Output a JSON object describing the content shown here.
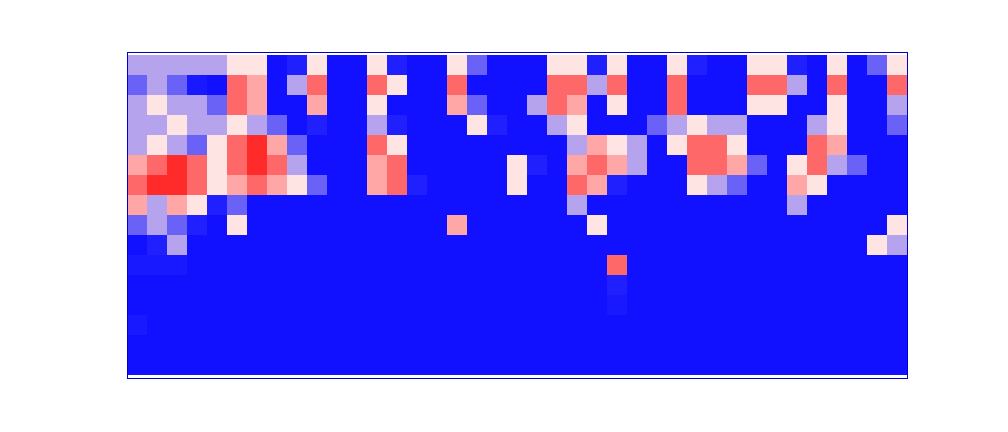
{
  "chart_data": {
    "type": "heatmap",
    "tick_labels": false,
    "zlim": [
      0,
      9
    ],
    "z": [
      [
        5,
        5,
        5,
        5,
        5,
        6,
        6,
        1,
        3,
        6,
        1,
        1,
        6,
        3,
        1,
        1,
        6,
        4,
        1,
        1,
        1,
        6,
        6,
        3,
        6,
        1,
        1,
        6,
        3,
        1,
        1,
        6,
        6,
        3,
        1,
        6,
        1,
        4,
        6
      ],
      [
        4,
        5,
        4,
        2,
        1,
        8,
        7,
        1,
        5,
        8,
        1,
        1,
        8,
        6,
        1,
        1,
        8,
        1,
        1,
        1,
        1,
        8,
        8,
        5,
        8,
        1,
        1,
        8,
        1,
        1,
        1,
        8,
        8,
        5,
        1,
        8,
        1,
        1,
        8
      ],
      [
        5,
        6,
        5,
        5,
        4,
        8,
        7,
        1,
        1,
        7,
        1,
        1,
        6,
        1,
        1,
        1,
        7,
        4,
        1,
        1,
        5,
        8,
        7,
        1,
        6,
        1,
        1,
        8,
        1,
        1,
        1,
        6,
        6,
        1,
        1,
        6,
        1,
        1,
        5
      ],
      [
        5,
        5,
        6,
        5,
        5,
        6,
        5,
        4,
        1,
        3,
        1,
        1,
        5,
        3,
        1,
        1,
        1,
        6,
        3,
        1,
        1,
        5,
        6,
        1,
        1,
        1,
        4,
        5,
        6,
        5,
        5,
        1,
        1,
        1,
        5,
        6,
        1,
        1,
        4
      ],
      [
        5,
        6,
        5,
        4,
        6,
        8,
        9,
        7,
        4,
        1,
        1,
        1,
        8,
        6,
        1,
        1,
        1,
        1,
        1,
        1,
        1,
        1,
        5,
        7,
        6,
        5,
        1,
        6,
        8,
        8,
        6,
        1,
        1,
        1,
        8,
        7,
        1,
        1,
        1
      ],
      [
        7,
        8,
        9,
        8,
        6,
        8,
        9,
        8,
        5,
        1,
        1,
        1,
        7,
        8,
        1,
        1,
        1,
        1,
        1,
        6,
        3,
        1,
        7,
        8,
        7,
        5,
        1,
        1,
        8,
        8,
        7,
        4,
        1,
        6,
        8,
        5,
        4,
        1,
        1
      ],
      [
        8,
        9,
        9,
        8,
        6,
        7,
        8,
        7,
        6,
        4,
        1,
        1,
        7,
        8,
        3,
        1,
        1,
        1,
        1,
        6,
        1,
        1,
        8,
        7,
        3,
        1,
        1,
        1,
        6,
        5,
        4,
        1,
        1,
        7,
        6,
        1,
        1,
        1,
        1
      ],
      [
        7,
        5,
        7,
        6,
        3,
        4,
        1,
        1,
        1,
        1,
        1,
        1,
        1,
        1,
        1,
        1,
        1,
        1,
        1,
        1,
        1,
        1,
        5,
        1,
        1,
        1,
        1,
        1,
        1,
        1,
        1,
        1,
        1,
        5,
        1,
        1,
        1,
        1,
        1
      ],
      [
        4,
        5,
        4,
        3,
        1,
        6,
        1,
        1,
        1,
        1,
        1,
        1,
        1,
        1,
        1,
        1,
        7,
        1,
        1,
        1,
        1,
        1,
        1,
        6,
        1,
        1,
        1,
        1,
        1,
        1,
        1,
        1,
        1,
        1,
        1,
        1,
        1,
        1,
        6
      ],
      [
        1,
        3,
        5,
        1,
        1,
        1,
        1,
        1,
        1,
        1,
        1,
        1,
        1,
        1,
        1,
        1,
        1,
        1,
        1,
        1,
        1,
        1,
        1,
        1,
        1,
        1,
        1,
        1,
        1,
        1,
        1,
        1,
        1,
        1,
        1,
        1,
        1,
        6,
        5
      ],
      [
        2,
        2,
        2,
        1,
        1,
        1,
        1,
        1,
        1,
        1,
        1,
        1,
        1,
        1,
        1,
        1,
        1,
        1,
        1,
        1,
        1,
        1,
        1,
        1,
        8,
        1,
        1,
        1,
        1,
        1,
        1,
        1,
        1,
        1,
        1,
        1,
        1,
        1,
        1
      ],
      [
        1,
        1,
        1,
        1,
        1,
        1,
        1,
        1,
        1,
        1,
        1,
        1,
        1,
        1,
        1,
        1,
        1,
        1,
        1,
        1,
        1,
        1,
        1,
        1,
        3,
        1,
        1,
        1,
        1,
        1,
        1,
        1,
        1,
        1,
        1,
        1,
        1,
        1,
        1
      ],
      [
        1,
        1,
        1,
        1,
        1,
        1,
        1,
        1,
        1,
        1,
        1,
        1,
        1,
        1,
        1,
        1,
        1,
        1,
        1,
        1,
        1,
        1,
        1,
        1,
        2,
        1,
        1,
        1,
        1,
        1,
        1,
        1,
        1,
        1,
        1,
        1,
        1,
        1,
        1
      ],
      [
        2,
        1,
        1,
        1,
        1,
        1,
        1,
        1,
        1,
        1,
        1,
        1,
        1,
        1,
        1,
        1,
        1,
        1,
        1,
        1,
        1,
        1,
        1,
        1,
        1,
        1,
        1,
        1,
        1,
        1,
        1,
        1,
        1,
        1,
        1,
        1,
        1,
        1,
        1
      ],
      [
        1,
        1,
        1,
        1,
        1,
        1,
        1,
        1,
        1,
        1,
        1,
        1,
        1,
        1,
        1,
        1,
        1,
        1,
        1,
        1,
        1,
        1,
        1,
        1,
        1,
        1,
        1,
        1,
        1,
        1,
        1,
        1,
        1,
        1,
        1,
        1,
        1,
        1,
        1
      ],
      [
        1,
        1,
        1,
        1,
        1,
        1,
        1,
        1,
        1,
        1,
        1,
        1,
        1,
        1,
        1,
        1,
        1,
        1,
        1,
        1,
        1,
        1,
        1,
        1,
        1,
        1,
        1,
        1,
        1,
        1,
        1,
        1,
        1,
        1,
        1,
        1,
        1,
        1,
        1
      ]
    ]
  }
}
